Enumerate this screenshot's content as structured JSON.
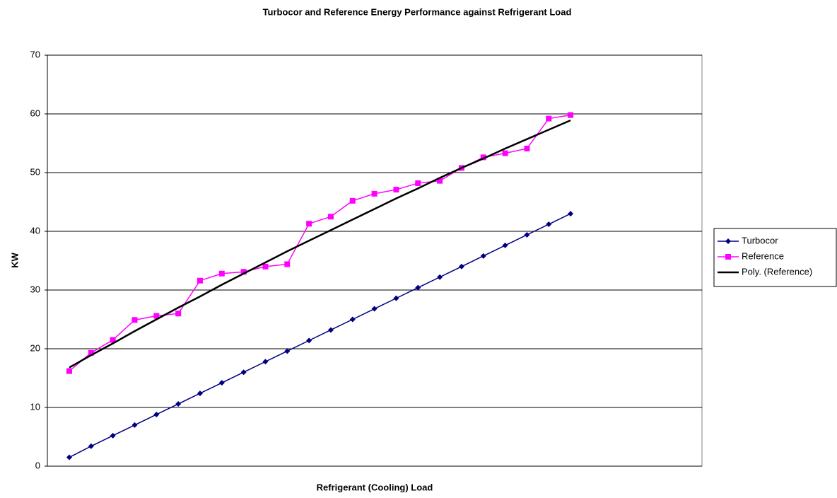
{
  "chart_data": {
    "type": "line",
    "title": "Turbocor and Reference Energy Performance against Refrigerant Load",
    "x_label": "Refrigerant (Cooling) Load",
    "y_label": "KW",
    "categories": [
      null,
      null,
      null,
      null,
      null,
      null,
      null,
      null,
      null,
      null,
      null,
      null,
      null,
      null,
      null,
      null,
      null,
      null,
      null,
      null,
      null,
      null,
      null,
      null
    ],
    "series": [
      {
        "name": "Turbocor",
        "color": "#000080",
        "marker": "diamond",
        "values": [
          1.5,
          3.4,
          5.2,
          7.0,
          8.8,
          10.6,
          12.4,
          14.2,
          16.0,
          17.8,
          19.6,
          21.4,
          23.2,
          25.0,
          26.8,
          28.6,
          30.4,
          32.2,
          34.0,
          35.8,
          37.6,
          39.4,
          41.2,
          43.0
        ]
      },
      {
        "name": "Reference",
        "color": "#ff00ff",
        "marker": "square",
        "values": [
          16.2,
          19.3,
          21.5,
          24.9,
          25.6,
          26.0,
          31.6,
          32.8,
          33.1,
          34.0,
          34.4,
          41.3,
          42.5,
          45.2,
          46.4,
          47.1,
          48.2,
          48.6,
          50.8,
          52.6,
          53.3,
          54.1,
          59.2,
          59.8
        ]
      },
      {
        "name": "Poly. (Reference)",
        "color": "#000000",
        "marker": "none",
        "values": [
          16.8,
          18.9,
          20.9,
          23.0,
          25.0,
          27.0,
          28.9,
          30.9,
          32.8,
          34.7,
          36.6,
          38.4,
          40.2,
          42.0,
          43.8,
          45.6,
          47.3,
          49.1,
          50.8,
          52.4,
          54.1,
          55.7,
          57.3,
          58.9
        ]
      }
    ],
    "ylim": [
      0,
      70
    ],
    "yticks": [
      0,
      10,
      20,
      30,
      40,
      50,
      60,
      70
    ],
    "grid": true,
    "legend": "right"
  }
}
